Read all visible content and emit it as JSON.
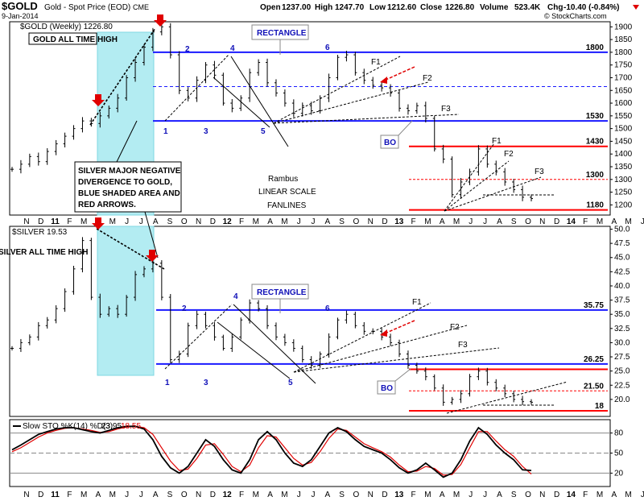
{
  "header": {
    "symbol": "$GOLD",
    "description": "Gold - Spot Price (EOD)",
    "exchange": "CME",
    "date": "9-Jan-2014",
    "open_label": "Open",
    "open": "1237.00",
    "high_label": "High",
    "high": "1247.70",
    "low": "1212.60",
    "close_label": "Close",
    "close": "1226.80",
    "volume_label": "Volume",
    "volume": "523.4K",
    "chg_label": "Chg",
    "chg": "-10.40 (-0.84%)",
    "credit": "© StockCharts.com"
  },
  "chart_data": [
    {
      "type": "bar",
      "panel": "gold",
      "title": "$GOLD (Weekly) 1226.80",
      "ylim": [
        1160,
        1920
      ],
      "yticks": [
        1200,
        1250,
        1300,
        1350,
        1400,
        1450,
        1500,
        1550,
        1600,
        1650,
        1700,
        1750,
        1800,
        1850,
        1900
      ],
      "x_labels": [
        "N",
        "D",
        "11",
        "F",
        "M",
        "A",
        "M",
        "J",
        "J",
        "A",
        "S",
        "O",
        "N",
        "D",
        "12",
        "F",
        "M",
        "A",
        "M",
        "J",
        "J",
        "A",
        "S",
        "O",
        "N",
        "D",
        "13",
        "F",
        "M",
        "A",
        "M",
        "J",
        "J",
        "A",
        "S",
        "O",
        "N",
        "D",
        "14",
        "F",
        "M",
        "A",
        "M",
        "J"
      ],
      "path": [
        1340,
        1360,
        1390,
        1370,
        1410,
        1440,
        1470,
        1500,
        1530,
        1520,
        1550,
        1580,
        1620,
        1700,
        1760,
        1820,
        1880,
        1900,
        1790,
        1650,
        1620,
        1690,
        1750,
        1710,
        1600,
        1580,
        1620,
        1720,
        1760,
        1680,
        1640,
        1600,
        1560,
        1590,
        1570,
        1620,
        1700,
        1780,
        1790,
        1720,
        1690,
        1670,
        1660,
        1640,
        1580,
        1570,
        1590,
        1540,
        1420,
        1380,
        1240,
        1290,
        1330,
        1420,
        1360,
        1330,
        1290,
        1260,
        1230,
        1225
      ],
      "series": [
        {
          "name": "$GOLD (Weekly)",
          "last": 1226.8
        }
      ],
      "levels": [
        {
          "value": 1800,
          "label": "1800",
          "color": "#1a1aff"
        },
        {
          "value": 1530,
          "label": "1530",
          "color": "#1a1aff"
        },
        {
          "value": 1430,
          "label": "1430",
          "color": "#ff0000"
        },
        {
          "value": 1300,
          "label": "1300",
          "color": "#ff0000"
        },
        {
          "value": 1180,
          "label": "1180",
          "color": "#ff0000"
        }
      ],
      "annotations": [
        {
          "text": "GOLD ALL TIME HIGH"
        },
        {
          "text": "RECTANGLE"
        },
        {
          "text": "BO"
        },
        {
          "text": "Rambus"
        },
        {
          "text": "LINEAR SCALE"
        },
        {
          "text": "FANLINES"
        },
        {
          "text": "SILVER MAJOR NEGATIVE"
        },
        {
          "text": "DIVERGENCE TO GOLD,"
        },
        {
          "text": "BLUE SHADED AREA AND"
        },
        {
          "text": "RED ARROWS."
        }
      ],
      "wave_labels": [
        "1",
        "2",
        "3",
        "4",
        "5",
        "6"
      ],
      "fan_labels": [
        "F1",
        "F2",
        "F3"
      ]
    },
    {
      "type": "bar",
      "panel": "silver",
      "title": "$SILVER 19.53",
      "ylim": [
        17,
        50.5
      ],
      "yticks": [
        20,
        22.5,
        25,
        27.5,
        30,
        32.5,
        35,
        37.5,
        40,
        42.5,
        45,
        47.5,
        50
      ],
      "path": [
        29,
        30,
        31,
        33,
        34,
        36,
        39,
        43,
        48,
        38,
        35,
        36,
        35,
        38,
        42,
        43,
        44,
        38,
        27,
        28,
        33,
        35,
        33,
        31,
        29,
        31,
        34,
        37,
        36,
        33,
        31,
        30,
        29,
        27,
        26,
        28,
        31,
        34,
        35,
        33,
        32,
        32,
        31,
        30,
        28,
        26,
        25,
        24,
        22,
        19.5,
        20,
        21,
        24,
        25,
        23,
        22,
        21,
        20,
        19.6,
        19.5
      ],
      "series": [
        {
          "name": "$SILVER",
          "last": 19.53
        }
      ],
      "levels": [
        {
          "value": 35.75,
          "label": "35.75",
          "color": "#1a1aff"
        },
        {
          "value": 26.25,
          "label": "26.25",
          "color": "#1a1aff"
        },
        {
          "value": 25.3,
          "label": "",
          "color": "#ff0000"
        },
        {
          "value": 21.5,
          "label": "21.50",
          "color": "#ff0000"
        },
        {
          "value": 18,
          "label": "18",
          "color": "#ff0000"
        }
      ],
      "annotations": [
        {
          "text": "SILVER ALL TIME HIGH"
        },
        {
          "text": "RECTANGLE"
        },
        {
          "text": "BO"
        }
      ],
      "wave_labels": [
        "1",
        "2",
        "3",
        "4",
        "5",
        "6"
      ],
      "fan_labels": [
        "F1",
        "F2",
        "F3"
      ]
    },
    {
      "type": "line",
      "panel": "stochastic",
      "title": "Slow STO %K(14) %D(3)",
      "k_value": "23.95",
      "d_value": "18.55",
      "ylim": [
        0,
        100
      ],
      "yticks": [
        20,
        50,
        80
      ],
      "k": [
        55,
        62,
        70,
        78,
        82,
        86,
        88,
        88,
        85,
        82,
        80,
        84,
        88,
        90,
        90,
        86,
        70,
        45,
        28,
        20,
        30,
        50,
        70,
        60,
        40,
        25,
        20,
        40,
        70,
        82,
        70,
        50,
        35,
        30,
        40,
        60,
        80,
        88,
        82,
        70,
        60,
        55,
        50,
        40,
        28,
        20,
        25,
        35,
        25,
        14,
        20,
        40,
        68,
        88,
        78,
        62,
        50,
        40,
        25,
        23.95
      ],
      "d": [
        52,
        58,
        66,
        74,
        80,
        84,
        87,
        88,
        86,
        84,
        81,
        82,
        86,
        89,
        90,
        88,
        78,
        58,
        38,
        24,
        26,
        42,
        62,
        64,
        48,
        30,
        22,
        32,
        58,
        76,
        74,
        58,
        42,
        32,
        36,
        52,
        72,
        86,
        84,
        74,
        64,
        58,
        52,
        44,
        32,
        22,
        23,
        30,
        27,
        17,
        18,
        33,
        58,
        82,
        82,
        68,
        55,
        45,
        30,
        18.55
      ],
      "levels": [
        80,
        50,
        20
      ]
    }
  ]
}
